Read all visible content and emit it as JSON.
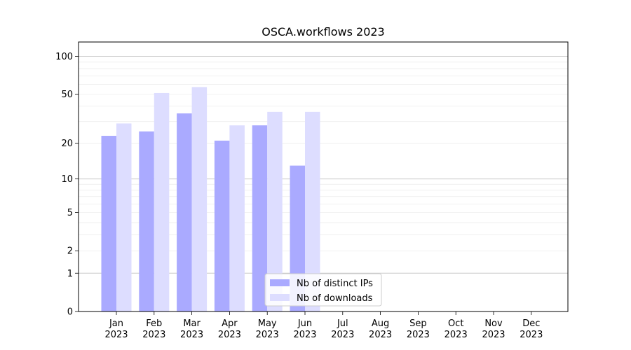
{
  "chart_data": {
    "type": "bar",
    "title": "OSCA.workflows 2023",
    "xlabel": "",
    "ylabel": "",
    "y_scale": "symlog",
    "ylim": [
      0,
      130
    ],
    "y_ticks": [
      0,
      1,
      2,
      5,
      10,
      20,
      50,
      100
    ],
    "grid": true,
    "legend_position": "bottom-center",
    "categories": [
      {
        "month": "Jan",
        "year": "2023"
      },
      {
        "month": "Feb",
        "year": "2023"
      },
      {
        "month": "Mar",
        "year": "2023"
      },
      {
        "month": "Apr",
        "year": "2023"
      },
      {
        "month": "May",
        "year": "2023"
      },
      {
        "month": "Jun",
        "year": "2023"
      },
      {
        "month": "Jul",
        "year": "2023"
      },
      {
        "month": "Aug",
        "year": "2023"
      },
      {
        "month": "Sep",
        "year": "2023"
      },
      {
        "month": "Oct",
        "year": "2023"
      },
      {
        "month": "Nov",
        "year": "2023"
      },
      {
        "month": "Dec",
        "year": "2023"
      }
    ],
    "series": [
      {
        "name": "Nb of distinct IPs",
        "color": "#aaaaff",
        "values": [
          23,
          25,
          35,
          21,
          28,
          13,
          0,
          0,
          0,
          0,
          0,
          0
        ]
      },
      {
        "name": "Nb of downloads",
        "color": "#ddddff",
        "values": [
          29,
          51,
          57,
          28,
          36,
          36,
          0,
          0,
          0,
          0,
          0,
          0
        ]
      }
    ]
  }
}
